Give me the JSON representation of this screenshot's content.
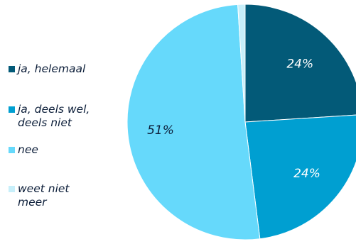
{
  "chart_data": {
    "type": "pie",
    "title": "",
    "legend_position": "left",
    "slices": [
      {
        "label": "ja, helemaal",
        "value": 24,
        "value_label": "24%",
        "color": "#035a78"
      },
      {
        "label": "ja, deels wel,\ndeels niet",
        "value": 24,
        "value_label": "24%",
        "color": "#009fd1"
      },
      {
        "label": "nee",
        "value": 51,
        "value_label": "51%",
        "color": "#66d9fb"
      },
      {
        "label": "weet niet\nmeer",
        "value": 1,
        "value_label": "",
        "color": "#c7effa"
      }
    ]
  }
}
